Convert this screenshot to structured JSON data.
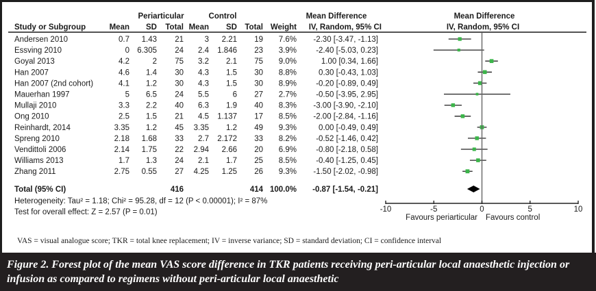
{
  "header": {
    "group1": "Periarticular",
    "group2": "Control",
    "effect_title": "Mean Difference",
    "effect_subtitle": "IV, Random, 95% CI",
    "plot_title": "Mean Difference",
    "plot_subtitle": "IV, Random, 95% CI",
    "columns": [
      "Study or Subgroup",
      "Mean",
      "SD",
      "Total",
      "Mean",
      "SD",
      "Total",
      "Weight",
      "IV, Random, 95% CI"
    ]
  },
  "chart_data": {
    "type": "forest",
    "title": "Mean Difference IV, Random, 95% CI",
    "xlim": [
      -10,
      10
    ],
    "xticks": [
      "-10",
      "-5",
      "0",
      "5",
      "10"
    ],
    "xtick_values": [
      -10,
      -5,
      0,
      5,
      10
    ],
    "xlabel_left": "Favours periarticular",
    "xlabel_right": "Favours control",
    "marker_color": "#3cb54a",
    "studies": [
      {
        "name": "Andersen 2010",
        "p_mean": "0.7",
        "p_sd": "1.43",
        "p_total": "21",
        "c_mean": "3",
        "c_sd": "2.21",
        "c_total": "19",
        "weight": "7.6%",
        "ci_text": "-2.30 [-3.47, -1.13]",
        "md": -2.3,
        "lo": -3.47,
        "hi": -1.13
      },
      {
        "name": "Essving 2010",
        "p_mean": "0",
        "p_sd": "6.305",
        "p_total": "24",
        "c_mean": "2.4",
        "c_sd": "1.846",
        "c_total": "23",
        "weight": "3.9%",
        "ci_text": "-2.40 [-5.03, 0.23]",
        "md": -2.4,
        "lo": -5.03,
        "hi": 0.23
      },
      {
        "name": "Goyal 2013",
        "p_mean": "4.2",
        "p_sd": "2",
        "p_total": "75",
        "c_mean": "3.2",
        "c_sd": "2.1",
        "c_total": "75",
        "weight": "9.0%",
        "ci_text": "1.00 [0.34, 1.66]",
        "md": 1.0,
        "lo": 0.34,
        "hi": 1.66
      },
      {
        "name": "Han 2007",
        "p_mean": "4.6",
        "p_sd": "1.4",
        "p_total": "30",
        "c_mean": "4.3",
        "c_sd": "1.5",
        "c_total": "30",
        "weight": "8.8%",
        "ci_text": "0.30 [-0.43, 1.03]",
        "md": 0.3,
        "lo": -0.43,
        "hi": 1.03
      },
      {
        "name": "Han 2007 (2nd cohort)",
        "p_mean": "4.1",
        "p_sd": "1.2",
        "p_total": "30",
        "c_mean": "4.3",
        "c_sd": "1.5",
        "c_total": "30",
        "weight": "8.9%",
        "ci_text": "-0.20 [-0.89, 0.49]",
        "md": -0.2,
        "lo": -0.89,
        "hi": 0.49
      },
      {
        "name": "Mauerhan 1997",
        "p_mean": "5",
        "p_sd": "6.5",
        "p_total": "24",
        "c_mean": "5.5",
        "c_sd": "6",
        "c_total": "27",
        "weight": "2.7%",
        "ci_text": "-0.50 [-3.95, 2.95]",
        "md": -0.5,
        "lo": -3.95,
        "hi": 2.95
      },
      {
        "name": "Mullaji 2010",
        "p_mean": "3.3",
        "p_sd": "2.2",
        "p_total": "40",
        "c_mean": "6.3",
        "c_sd": "1.9",
        "c_total": "40",
        "weight": "8.3%",
        "ci_text": "-3.00 [-3.90, -2.10]",
        "md": -3.0,
        "lo": -3.9,
        "hi": -2.1
      },
      {
        "name": "Ong 2010",
        "p_mean": "2.5",
        "p_sd": "1.5",
        "p_total": "21",
        "c_mean": "4.5",
        "c_sd": "1.137",
        "c_total": "17",
        "weight": "8.5%",
        "ci_text": "-2.00 [-2.84, -1.16]",
        "md": -2.0,
        "lo": -2.84,
        "hi": -1.16
      },
      {
        "name": "Reinhardt, 2014",
        "p_mean": "3.35",
        "p_sd": "1.2",
        "p_total": "45",
        "c_mean": "3.35",
        "c_sd": "1.2",
        "c_total": "49",
        "weight": "9.3%",
        "ci_text": "0.00 [-0.49, 0.49]",
        "md": 0.0,
        "lo": -0.49,
        "hi": 0.49
      },
      {
        "name": "Spreng 2010",
        "p_mean": "2.18",
        "p_sd": "1.68",
        "p_total": "33",
        "c_mean": "2.7",
        "c_sd": "2.172",
        "c_total": "33",
        "weight": "8.2%",
        "ci_text": "-0.52 [-1.46, 0.42]",
        "md": -0.52,
        "lo": -1.46,
        "hi": 0.42
      },
      {
        "name": "Vendittoli 2006",
        "p_mean": "2.14",
        "p_sd": "1.75",
        "p_total": "22",
        "c_mean": "2.94",
        "c_sd": "2.66",
        "c_total": "20",
        "weight": "6.9%",
        "ci_text": "-0.80 [-2.18, 0.58]",
        "md": -0.8,
        "lo": -2.18,
        "hi": 0.58
      },
      {
        "name": "Williams 2013",
        "p_mean": "1.7",
        "p_sd": "1.3",
        "p_total": "24",
        "c_mean": "2.1",
        "c_sd": "1.7",
        "c_total": "25",
        "weight": "8.5%",
        "ci_text": "-0.40 [-1.25, 0.45]",
        "md": -0.4,
        "lo": -1.25,
        "hi": 0.45
      },
      {
        "name": "Zhang 2011",
        "p_mean": "2.75",
        "p_sd": "0.55",
        "p_total": "27",
        "c_mean": "4.25",
        "c_sd": "1.25",
        "c_total": "26",
        "weight": "9.3%",
        "ci_text": "-1.50 [-2.02, -0.98]",
        "md": -1.5,
        "lo": -2.02,
        "hi": -0.98
      }
    ],
    "total": {
      "label": "Total (95% CI)",
      "p_total": "416",
      "c_total": "414",
      "weight": "100.0%",
      "ci_text": "-0.87 [-1.54, -0.21]",
      "md": -0.87,
      "lo": -1.54,
      "hi": -0.21
    },
    "heterogeneity": "Heterogeneity: Tau² = 1.18; Chi² = 95.28, df = 12 (P < 0.00001); I² = 87%",
    "overall_effect": "Test for overall effect: Z = 2.57 (P = 0.01)"
  },
  "footnote": "VAS = visual analogue score; TKR = total knee replacement; IV = inverse variance; SD = standard deviation; CI = confidence interval",
  "caption": "Figure 2. Forest plot of the mean VAS score difference in TKR patients receiving peri-articular local anaesthetic injection or infusion as compared to regimens without peri-articular local anaesthetic"
}
